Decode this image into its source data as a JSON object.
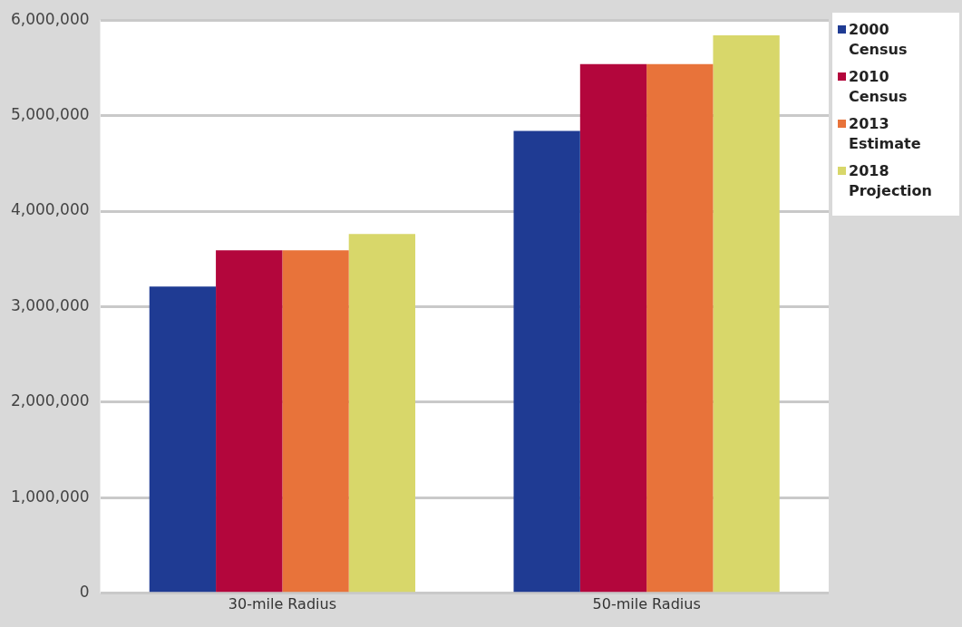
{
  "chart_data": {
    "type": "bar",
    "categories": [
      "30-mile Radius",
      "50-mile Radius"
    ],
    "series": [
      {
        "name": "2000 Census",
        "color": "#1f3b93",
        "values": [
          3210000,
          4840000
        ]
      },
      {
        "name": "2010 Census",
        "color": "#b3063c",
        "values": [
          3590000,
          5540000
        ]
      },
      {
        "name": "2013 Estimate",
        "color": "#e8733a",
        "values": [
          3590000,
          5540000
        ]
      },
      {
        "name": "2018 Projection",
        "color": "#d8d76a",
        "values": [
          3760000,
          5840000
        ]
      }
    ],
    "ylim": [
      0,
      6000000
    ],
    "yticks": [
      0,
      {
        "value": 1000000,
        "label": "1,000,000"
      },
      {
        "value": 2000000,
        "label": "2,000,000"
      },
      {
        "value": 3000000,
        "label": "3,000,000"
      },
      {
        "value": 4000000,
        "label": "4,000,000"
      },
      {
        "value": 5000000,
        "label": "5,000,000"
      },
      {
        "value": 6000000,
        "label": "6,000,000"
      }
    ],
    "grid": "y",
    "legend": "top right"
  }
}
